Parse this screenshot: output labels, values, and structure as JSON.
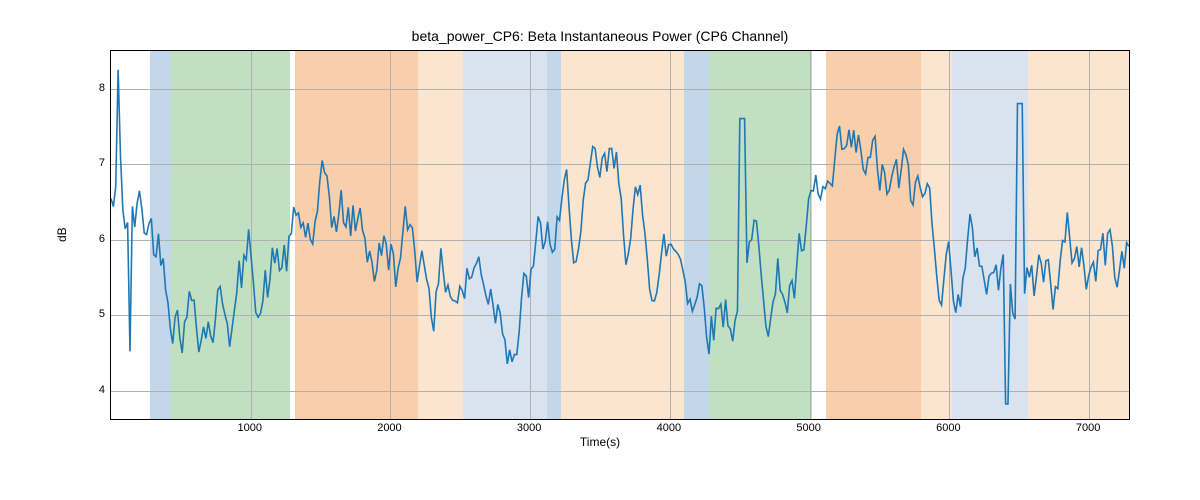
{
  "chart": {
    "type": "line",
    "title": "beta_power_CP6: Beta Instantaneous Power (CP6 Channel)",
    "xlabel": "Time(s)",
    "ylabel": "dB",
    "title_fontsize": 14,
    "label_fontsize": 12,
    "tick_fontsize": 11,
    "background_color": "#ffffff",
    "grid_color": "#b0b0b0",
    "line_color": "#1f77b4",
    "line_width": 1.6,
    "xlim": [
      0,
      7300
    ],
    "ylim": [
      3.6,
      8.5
    ],
    "xticks": [
      1000,
      2000,
      3000,
      4000,
      5000,
      6000,
      7000
    ],
    "yticks": [
      4,
      5,
      6,
      7,
      8
    ],
    "bands": [
      {
        "start": 280,
        "end": 430,
        "color": "#c3d7ea",
        "opacity": 1.0
      },
      {
        "start": 430,
        "end": 1280,
        "color": "#c1e0c1",
        "opacity": 1.0
      },
      {
        "start": 1320,
        "end": 2200,
        "color": "#f9ceab",
        "opacity": 1.0
      },
      {
        "start": 2200,
        "end": 2520,
        "color": "#fce5cf",
        "opacity": 1.0
      },
      {
        "start": 2520,
        "end": 3120,
        "color": "#d9e3ef",
        "opacity": 1.0
      },
      {
        "start": 3120,
        "end": 3220,
        "color": "#c3d7ea",
        "opacity": 1.0
      },
      {
        "start": 3220,
        "end": 4100,
        "color": "#fce5cf",
        "opacity": 1.0
      },
      {
        "start": 4100,
        "end": 4280,
        "color": "#c3d7ea",
        "opacity": 1.0
      },
      {
        "start": 4280,
        "end": 5020,
        "color": "#c1e0c1",
        "opacity": 1.0
      },
      {
        "start": 5120,
        "end": 5800,
        "color": "#f9ceab",
        "opacity": 1.0
      },
      {
        "start": 5800,
        "end": 6020,
        "color": "#fce5cf",
        "opacity": 1.0
      },
      {
        "start": 6020,
        "end": 6560,
        "color": "#d9e3ef",
        "opacity": 1.0
      },
      {
        "start": 6560,
        "end": 7300,
        "color": "#fce5cf",
        "opacity": 1.0
      }
    ],
    "series_seed": 42,
    "series_n_points": 430
  }
}
